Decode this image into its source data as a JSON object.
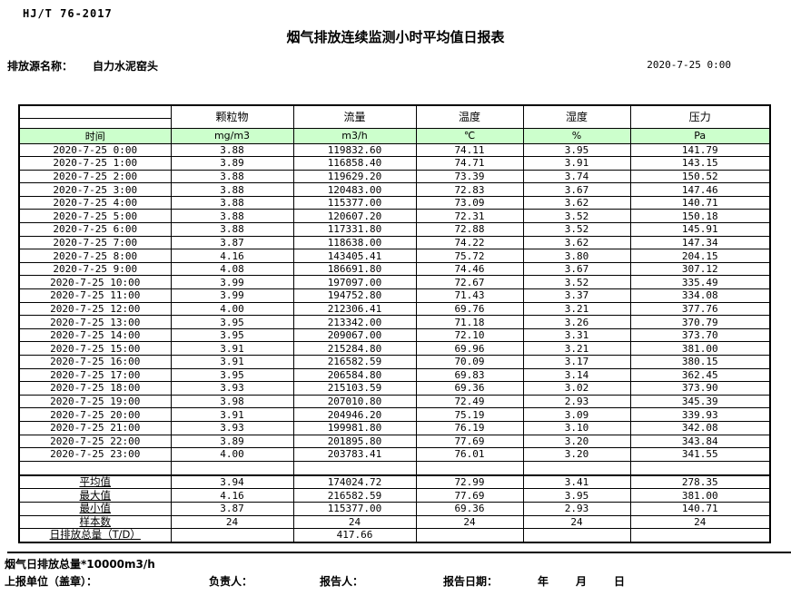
{
  "page": {
    "doc_code": "HJ/T 76-2017",
    "title": "烟气排放连续监测小时平均值日报表",
    "source_label": "排放源名称：",
    "source_name": "自力水泥窑头",
    "datetime": "2020-7-25 0:00"
  },
  "colors": {
    "header_green": "#ccffcc",
    "border": "#000000"
  },
  "table": {
    "time_header": "时间",
    "columns": [
      {
        "name": "颗粒物",
        "unit": "mg/m3"
      },
      {
        "name": "流量",
        "unit": "m3/h"
      },
      {
        "name": "温度",
        "unit": "℃"
      },
      {
        "name": "湿度",
        "unit": "%"
      },
      {
        "name": "压力",
        "unit": "Pa"
      }
    ],
    "rows": [
      {
        "time": "2020-7-25 0:00",
        "values": [
          "3.88",
          "119832.60",
          "74.11",
          "3.95",
          "141.79"
        ]
      },
      {
        "time": "2020-7-25 1:00",
        "values": [
          "3.89",
          "116858.40",
          "74.71",
          "3.91",
          "143.15"
        ]
      },
      {
        "time": "2020-7-25 2:00",
        "values": [
          "3.88",
          "119629.20",
          "73.39",
          "3.74",
          "150.52"
        ]
      },
      {
        "time": "2020-7-25 3:00",
        "values": [
          "3.88",
          "120483.00",
          "72.83",
          "3.67",
          "147.46"
        ]
      },
      {
        "time": "2020-7-25 4:00",
        "values": [
          "3.88",
          "115377.00",
          "73.09",
          "3.62",
          "140.71"
        ]
      },
      {
        "time": "2020-7-25 5:00",
        "values": [
          "3.88",
          "120607.20",
          "72.31",
          "3.52",
          "150.18"
        ]
      },
      {
        "time": "2020-7-25 6:00",
        "values": [
          "3.88",
          "117331.80",
          "72.88",
          "3.52",
          "145.91"
        ]
      },
      {
        "time": "2020-7-25 7:00",
        "values": [
          "3.87",
          "118638.00",
          "74.22",
          "3.62",
          "147.34"
        ]
      },
      {
        "time": "2020-7-25 8:00",
        "values": [
          "4.16",
          "143405.41",
          "75.72",
          "3.80",
          "204.15"
        ]
      },
      {
        "time": "2020-7-25 9:00",
        "values": [
          "4.08",
          "186691.80",
          "74.46",
          "3.67",
          "307.12"
        ]
      },
      {
        "time": "2020-7-25 10:00",
        "values": [
          "3.99",
          "197097.00",
          "72.67",
          "3.52",
          "335.49"
        ]
      },
      {
        "time": "2020-7-25 11:00",
        "values": [
          "3.99",
          "194752.80",
          "71.43",
          "3.37",
          "334.08"
        ]
      },
      {
        "time": "2020-7-25 12:00",
        "values": [
          "4.00",
          "212306.41",
          "69.76",
          "3.21",
          "377.76"
        ]
      },
      {
        "time": "2020-7-25 13:00",
        "values": [
          "3.95",
          "213342.00",
          "71.18",
          "3.26",
          "370.79"
        ]
      },
      {
        "time": "2020-7-25 14:00",
        "values": [
          "3.95",
          "209067.00",
          "72.10",
          "3.31",
          "373.70"
        ]
      },
      {
        "time": "2020-7-25 15:00",
        "values": [
          "3.91",
          "215284.80",
          "69.96",
          "3.21",
          "381.00"
        ]
      },
      {
        "time": "2020-7-25 16:00",
        "values": [
          "3.91",
          "216582.59",
          "70.09",
          "3.17",
          "380.15"
        ]
      },
      {
        "time": "2020-7-25 17:00",
        "values": [
          "3.95",
          "206584.80",
          "69.83",
          "3.14",
          "362.45"
        ]
      },
      {
        "time": "2020-7-25 18:00",
        "values": [
          "3.93",
          "215103.59",
          "69.36",
          "3.02",
          "373.90"
        ]
      },
      {
        "time": "2020-7-25 19:00",
        "values": [
          "3.98",
          "207010.80",
          "72.49",
          "2.93",
          "345.39"
        ]
      },
      {
        "time": "2020-7-25 20:00",
        "values": [
          "3.91",
          "204946.20",
          "75.19",
          "3.09",
          "339.93"
        ]
      },
      {
        "time": "2020-7-25 21:00",
        "values": [
          "3.93",
          "199981.80",
          "76.19",
          "3.10",
          "342.08"
        ]
      },
      {
        "time": "2020-7-25 22:00",
        "values": [
          "3.89",
          "201895.80",
          "77.69",
          "3.20",
          "343.84"
        ]
      },
      {
        "time": "2020-7-25 23:00",
        "values": [
          "4.00",
          "203783.41",
          "76.01",
          "3.20",
          "341.55"
        ]
      }
    ],
    "summary": [
      {
        "label": "平均值",
        "values": [
          "3.94",
          "174024.72",
          "72.99",
          "3.41",
          "278.35"
        ]
      },
      {
        "label": "最大值",
        "values": [
          "4.16",
          "216582.59",
          "77.69",
          "3.95",
          "381.00"
        ]
      },
      {
        "label": "最小值",
        "values": [
          "3.87",
          "115377.00",
          "69.36",
          "2.93",
          "140.71"
        ]
      },
      {
        "label": "样本数",
        "values": [
          "24",
          "24",
          "24",
          "24",
          "24"
        ]
      },
      {
        "label": "日排放总量（T/D）",
        "values": [
          "",
          "417.66",
          "",
          "",
          ""
        ]
      }
    ]
  },
  "footer": {
    "note": "烟气日排放总量*10000m3/h",
    "report_unit_label": "上报单位（盖章）：",
    "responsible_label": "负责人：",
    "reporter_label": "报告人：",
    "report_date_label": "报告日期：",
    "year_label": "年",
    "month_label": "月",
    "day_label": "日"
  }
}
